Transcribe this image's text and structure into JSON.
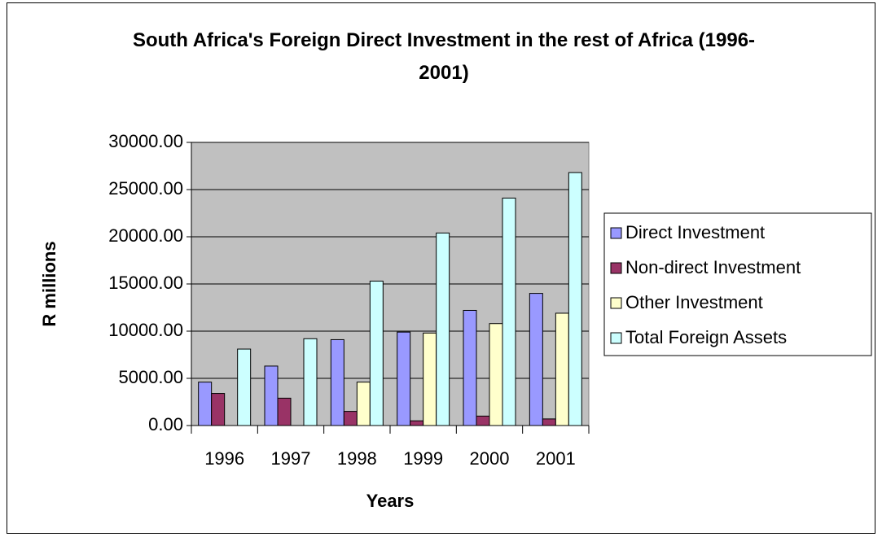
{
  "chart_data": {
    "type": "bar",
    "title": "South Africa's Foreign Direct Investment in the rest of Africa (1996-2001)",
    "xlabel": "Years",
    "ylabel": "R millions",
    "categories": [
      "1996",
      "1997",
      "1998",
      "1999",
      "2000",
      "2001"
    ],
    "series": [
      {
        "name": "Direct Investment",
        "color": "#9999ff",
        "values": [
          4600,
          6300,
          9100,
          9900,
          12200,
          14000
        ]
      },
      {
        "name": "Non-direct Investment",
        "color": "#993366",
        "values": [
          3400,
          2900,
          1500,
          500,
          1000,
          700
        ]
      },
      {
        "name": "Other Investment",
        "color": "#ffffcc",
        "values": [
          0,
          0,
          4600,
          9800,
          10800,
          11900
        ]
      },
      {
        "name": "Total Foreign Assets",
        "color": "#ccffff",
        "values": [
          8100,
          9200,
          15300,
          20400,
          24100,
          26800
        ]
      }
    ],
    "ylim": [
      0,
      30000
    ],
    "yticks": [
      {
        "value": 0,
        "label": "0.00"
      },
      {
        "value": 5000,
        "label": "5000.00"
      },
      {
        "value": 10000,
        "label": "10000.00"
      },
      {
        "value": 15000,
        "label": "15000.00"
      },
      {
        "value": 20000,
        "label": "20000.00"
      },
      {
        "value": 25000,
        "label": "25000.00"
      },
      {
        "value": 30000,
        "label": "30000.00"
      }
    ],
    "grid": true,
    "plot_background": "#c0c0c0",
    "legend": "right"
  }
}
